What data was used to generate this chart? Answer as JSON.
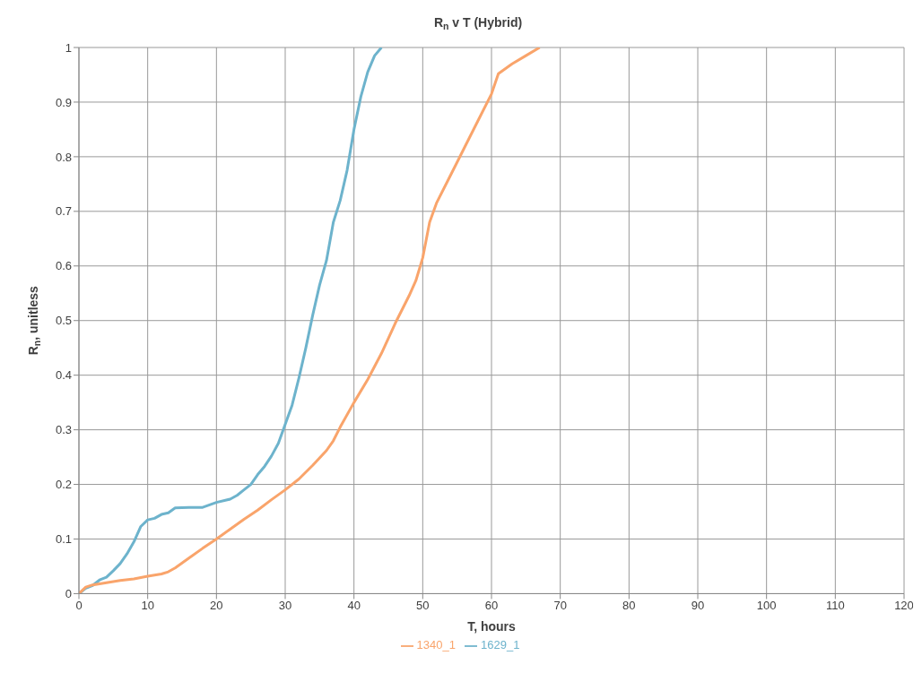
{
  "chart_data": {
    "type": "line",
    "title": "R$_{n}$ v T (Hybrid)",
    "xlabel": "T, hours",
    "ylabel": "R$_{n}$, unitless",
    "xlim": [
      0,
      120
    ],
    "xticks": [
      0,
      10,
      20,
      30,
      40,
      50,
      60,
      70,
      80,
      90,
      100,
      110,
      120
    ],
    "ylim": [
      0,
      1
    ],
    "yticks": [
      0,
      0.1,
      0.2,
      0.3,
      0.4,
      0.5,
      0.6,
      0.7,
      0.8,
      0.9,
      1
    ],
    "grid": true,
    "legend": "bottom",
    "marker": "none",
    "line_style": "solid",
    "series": [
      {
        "name": "1629_1",
        "color": "#6db3cc",
        "x": [
          0,
          1,
          2,
          3,
          4,
          5,
          6,
          7,
          8,
          9,
          10,
          11,
          12,
          13,
          14,
          16,
          18,
          20,
          22,
          23,
          24,
          25,
          26,
          27,
          28,
          29,
          30,
          31,
          32,
          33,
          34,
          35,
          36,
          37,
          38,
          39,
          40,
          41,
          42,
          43,
          44
        ],
        "values": [
          0,
          0.01,
          0.015,
          0.025,
          0.03,
          0.042,
          0.055,
          0.073,
          0.095,
          0.123,
          0.135,
          0.138,
          0.145,
          0.148,
          0.157,
          0.158,
          0.158,
          0.167,
          0.173,
          0.18,
          0.19,
          0.2,
          0.218,
          0.233,
          0.252,
          0.275,
          0.31,
          0.345,
          0.395,
          0.45,
          0.51,
          0.565,
          0.61,
          0.68,
          0.72,
          0.775,
          0.85,
          0.91,
          0.955,
          0.985,
          1.0
        ]
      },
      {
        "name": "1340_1",
        "color": "#f9a46b",
        "x": [
          0,
          1,
          2,
          4,
          6,
          8,
          10,
          12,
          13,
          14,
          16,
          18,
          20,
          22,
          24,
          26,
          28,
          30,
          32,
          34,
          36,
          37,
          38,
          40,
          42,
          44,
          46,
          48,
          49,
          50,
          51,
          52,
          54,
          56,
          58,
          60,
          61,
          63,
          65,
          67
        ],
        "values": [
          0,
          0.012,
          0.016,
          0.02,
          0.024,
          0.027,
          0.032,
          0.036,
          0.04,
          0.047,
          0.065,
          0.083,
          0.1,
          0.118,
          0.136,
          0.153,
          0.172,
          0.19,
          0.21,
          0.235,
          0.262,
          0.28,
          0.305,
          0.35,
          0.392,
          0.44,
          0.495,
          0.545,
          0.573,
          0.615,
          0.68,
          0.715,
          0.765,
          0.815,
          0.865,
          0.915,
          0.952,
          0.97,
          0.985,
          1.0
        ]
      }
    ]
  }
}
